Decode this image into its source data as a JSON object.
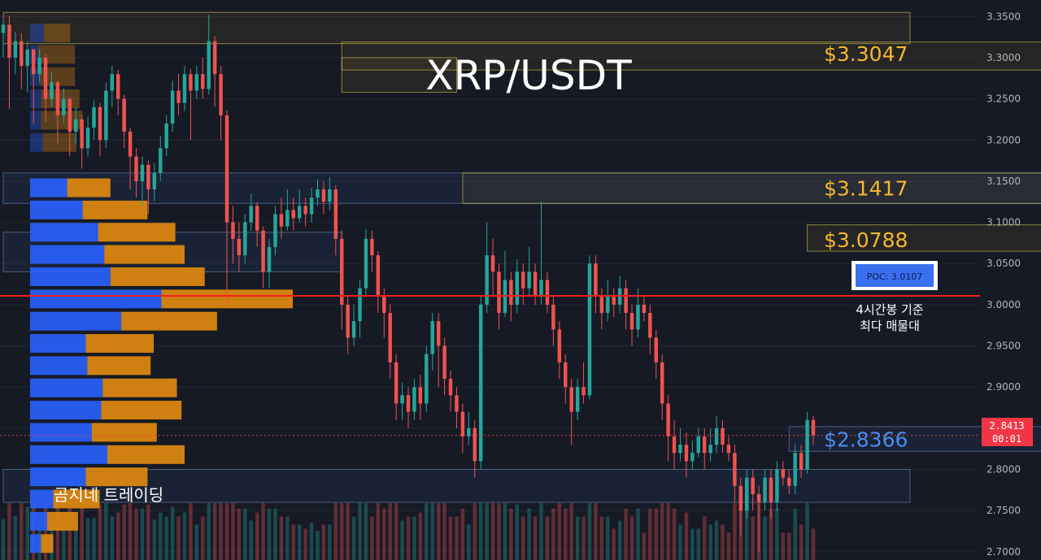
{
  "title": "XRP/USDT",
  "watermark": "곰지네 트레이딩",
  "poc_label": "POC: 3.0107",
  "poc_note": [
    "4시간봉 기준",
    "최다 매물대"
  ],
  "price_tag": {
    "price": "2.8413",
    "timer": "00:01"
  },
  "colors": {
    "up": "#26a69a",
    "down": "#ef5350",
    "poc": "#f21f1f",
    "level": "#f5b82e",
    "level_blue": "#4c8cf2",
    "vp_blue": "#2962ff",
    "vp_orange": "#d9860f"
  },
  "chart_data": {
    "type": "candlestick",
    "ylim": [
      2.69,
      3.37
    ],
    "y_ticks": [
      "3.3500",
      "3.3000",
      "3.2500",
      "3.2000",
      "3.1500",
      "3.1000",
      "3.0500",
      "3.0000",
      "2.9500",
      "2.9000",
      "2.8500",
      "2.8000",
      "2.7500",
      "2.7000"
    ],
    "y_tick_values": [
      3.35,
      3.3,
      3.25,
      3.2,
      3.15,
      3.1,
      3.05,
      3.0,
      2.95,
      2.9,
      2.85,
      2.8,
      2.75,
      2.7
    ],
    "current_price": 2.8413,
    "poc": 3.0107,
    "levels": [
      {
        "label": "$3.3047",
        "value": 3.3047,
        "color": "level"
      },
      {
        "label": "$3.1417",
        "value": 3.1417,
        "color": "level"
      },
      {
        "label": "$3.0788",
        "value": 3.0788,
        "color": "level"
      },
      {
        "label": "$2.8366",
        "value": 2.8366,
        "color": "level_blue"
      }
    ],
    "zones": [
      {
        "x": [
          0,
          150
        ],
        "y": [
          3.317,
          3.355
        ],
        "color": "yellow"
      },
      {
        "x": [
          56,
          234
        ],
        "y": [
          3.285,
          3.319
        ],
        "color": "yellow"
      },
      {
        "x": [
          56,
          75
        ],
        "y": [
          3.258,
          3.3
        ],
        "color": "yellow"
      },
      {
        "x": [
          0,
          234
        ],
        "y": [
          3.123,
          3.16
        ],
        "color": "blue"
      },
      {
        "x": [
          76,
          234
        ],
        "y": [
          3.123,
          3.16
        ],
        "color": "yellow"
      },
      {
        "x": [
          0,
          56
        ],
        "y": [
          3.04,
          3.088
        ],
        "color": "blue"
      },
      {
        "x": [
          133,
          234
        ],
        "y": [
          3.065,
          3.097
        ],
        "color": "yellow"
      },
      {
        "x": [
          130,
          234
        ],
        "y": [
          2.822,
          2.852
        ],
        "color": "blue"
      },
      {
        "x": [
          195,
          234
        ],
        "y": [
          2.822,
          2.852
        ],
        "color": "yellow"
      },
      {
        "x": [
          0,
          150
        ],
        "y": [
          2.76,
          2.8
        ],
        "color": "blue"
      }
    ],
    "volume_profile": {
      "bins": [
        3.33,
        3.304,
        3.277,
        3.25,
        3.224,
        3.197,
        3.142,
        3.115,
        3.088,
        3.061,
        3.034,
        3.007,
        2.98,
        2.953,
        2.926,
        2.899,
        2.872,
        2.845,
        2.818,
        2.791,
        2.764,
        2.737,
        2.71
      ],
      "buy": [
        9,
        5,
        6,
        7,
        7,
        8,
        24,
        34,
        44,
        48,
        52,
        85,
        59,
        36,
        37,
        47,
        46,
        40,
        50,
        36,
        15,
        11,
        7
      ],
      "sell": [
        17,
        24,
        23,
        25,
        27,
        22,
        28,
        42,
        50,
        52,
        61,
        85,
        62,
        44,
        41,
        48,
        52,
        42,
        50,
        40,
        30,
        20,
        8
      ],
      "faded_bins": 6
    },
    "candles": [
      [
        3.33,
        3.34,
        3.347,
        3.3
      ],
      [
        3.34,
        3.3,
        3.351,
        3.238
      ],
      [
        3.3,
        3.32,
        3.331,
        3.28
      ],
      [
        3.32,
        3.29,
        3.33,
        3.262
      ],
      [
        3.29,
        3.31,
        3.32,
        3.258
      ],
      [
        3.31,
        3.28,
        3.311,
        3.22
      ],
      [
        3.28,
        3.3,
        3.31,
        3.27
      ],
      [
        3.3,
        3.25,
        3.304,
        3.222
      ],
      [
        3.25,
        3.27,
        3.282,
        3.24
      ],
      [
        3.27,
        3.23,
        3.272,
        3.195
      ],
      [
        3.23,
        3.25,
        3.263,
        3.22
      ],
      [
        3.25,
        3.21,
        3.252,
        3.18
      ],
      [
        3.21,
        3.225,
        3.24,
        3.195
      ],
      [
        3.225,
        3.19,
        3.23,
        3.165
      ],
      [
        3.19,
        3.215,
        3.228,
        3.18
      ],
      [
        3.215,
        3.24,
        3.248,
        3.2
      ],
      [
        3.24,
        3.2,
        3.245,
        3.18
      ],
      [
        3.2,
        3.26,
        3.27,
        3.19
      ],
      [
        3.26,
        3.28,
        3.29,
        3.24
      ],
      [
        3.28,
        3.25,
        3.285,
        3.23
      ],
      [
        3.25,
        3.21,
        3.255,
        3.19
      ],
      [
        3.21,
        3.18,
        3.215,
        3.14
      ],
      [
        3.18,
        3.15,
        3.19,
        3.13
      ],
      [
        3.15,
        3.17,
        3.18,
        3.12
      ],
      [
        3.17,
        3.14,
        3.175,
        3.11
      ],
      [
        3.14,
        3.16,
        3.172,
        3.126
      ],
      [
        3.16,
        3.19,
        3.205,
        3.15
      ],
      [
        3.19,
        3.22,
        3.23,
        3.18
      ],
      [
        3.22,
        3.26,
        3.272,
        3.21
      ],
      [
        3.26,
        3.245,
        3.28,
        3.23
      ],
      [
        3.245,
        3.28,
        3.29,
        3.235
      ],
      [
        3.28,
        3.26,
        3.286,
        3.2
      ],
      [
        3.26,
        3.28,
        3.29,
        3.25
      ],
      [
        3.28,
        3.262,
        3.3,
        3.25
      ],
      [
        3.262,
        3.32,
        3.352,
        3.255
      ],
      [
        3.32,
        3.28,
        3.326,
        3.24
      ],
      [
        3.28,
        3.23,
        3.29,
        3.2
      ],
      [
        3.23,
        3.1,
        3.236,
        3.0
      ],
      [
        3.1,
        3.08,
        3.12,
        3.05
      ],
      [
        3.08,
        3.06,
        3.1,
        3.04
      ],
      [
        3.06,
        3.1,
        3.11,
        3.05
      ],
      [
        3.1,
        3.12,
        3.135,
        3.09
      ],
      [
        3.12,
        3.09,
        3.125,
        3.07
      ],
      [
        3.09,
        3.04,
        3.095,
        3.02
      ],
      [
        3.04,
        3.07,
        3.08,
        3.02
      ],
      [
        3.07,
        3.11,
        3.12,
        3.06
      ],
      [
        3.11,
        3.095,
        3.13,
        3.08
      ],
      [
        3.095,
        3.115,
        3.14,
        3.09
      ],
      [
        3.115,
        3.105,
        3.13,
        3.09
      ],
      [
        3.105,
        3.12,
        3.14,
        3.1
      ],
      [
        3.12,
        3.11,
        3.13,
        3.095
      ],
      [
        3.11,
        3.13,
        3.142,
        3.1
      ],
      [
        3.13,
        3.14,
        3.152,
        3.12
      ],
      [
        3.14,
        3.125,
        3.15,
        3.11
      ],
      [
        3.125,
        3.14,
        3.155,
        3.115
      ],
      [
        3.14,
        3.08,
        3.145,
        3.06
      ],
      [
        3.08,
        3.0,
        3.09,
        2.97
      ],
      [
        3.0,
        2.96,
        3.01,
        2.94
      ],
      [
        2.96,
        2.98,
        3.0,
        2.95
      ],
      [
        2.98,
        3.02,
        3.03,
        2.96
      ],
      [
        3.02,
        3.08,
        3.092,
        3.01
      ],
      [
        3.08,
        3.06,
        3.09,
        3.04
      ],
      [
        3.06,
        3.01,
        3.065,
        2.99
      ],
      [
        3.01,
        2.99,
        3.02,
        2.96
      ],
      [
        2.99,
        2.93,
        3.0,
        2.91
      ],
      [
        2.93,
        2.88,
        2.94,
        2.86
      ],
      [
        2.88,
        2.89,
        2.905,
        2.86
      ],
      [
        2.89,
        2.87,
        2.9,
        2.85
      ],
      [
        2.87,
        2.9,
        2.91,
        2.86
      ],
      [
        2.9,
        2.88,
        2.915,
        2.86
      ],
      [
        2.88,
        2.94,
        2.95,
        2.87
      ],
      [
        2.94,
        2.98,
        2.99,
        2.92
      ],
      [
        2.98,
        2.95,
        2.99,
        2.9
      ],
      [
        2.95,
        2.91,
        2.96,
        2.89
      ],
      [
        2.91,
        2.89,
        2.92,
        2.87
      ],
      [
        2.89,
        2.87,
        2.9,
        2.85
      ],
      [
        2.87,
        2.84,
        2.88,
        2.82
      ],
      [
        2.84,
        2.85,
        2.87,
        2.83
      ],
      [
        2.85,
        2.81,
        2.86,
        2.79
      ],
      [
        2.81,
        3.0,
        3.01,
        2.8
      ],
      [
        3.0,
        3.06,
        3.1,
        2.99
      ],
      [
        3.06,
        3.04,
        3.08,
        3.01
      ],
      [
        3.04,
        2.99,
        3.05,
        2.97
      ],
      [
        2.99,
        3.03,
        3.065,
        2.985
      ],
      [
        3.03,
        3.0,
        3.04,
        2.98
      ],
      [
        3.0,
        3.04,
        3.055,
        2.99
      ],
      [
        3.04,
        3.02,
        3.05,
        3.0
      ],
      [
        3.02,
        3.04,
        3.07,
        3.01
      ],
      [
        3.04,
        3.01,
        3.05,
        3.0
      ],
      [
        3.01,
        3.03,
        3.125,
        3.0
      ],
      [
        3.03,
        3.0,
        3.04,
        2.99
      ],
      [
        3.0,
        2.97,
        3.01,
        2.95
      ],
      [
        2.97,
        2.93,
        2.98,
        2.91
      ],
      [
        2.93,
        2.9,
        2.94,
        2.88
      ],
      [
        2.9,
        2.87,
        2.91,
        2.83
      ],
      [
        2.87,
        2.9,
        2.91,
        2.86
      ],
      [
        2.9,
        2.89,
        2.93,
        2.88
      ],
      [
        2.89,
        3.05,
        3.06,
        2.885
      ],
      [
        3.05,
        3.01,
        3.06,
        2.99
      ],
      [
        3.01,
        2.99,
        3.02,
        2.97
      ],
      [
        2.99,
        3.01,
        3.03,
        2.98
      ],
      [
        3.01,
        3.0,
        3.02,
        2.985
      ],
      [
        3.0,
        3.02,
        3.035,
        2.99
      ],
      [
        3.02,
        2.99,
        3.03,
        2.97
      ],
      [
        2.99,
        2.97,
        3.0,
        2.95
      ],
      [
        2.97,
        3.0,
        3.02,
        2.96
      ],
      [
        3.0,
        2.99,
        3.01,
        2.98
      ],
      [
        2.99,
        2.96,
        3.0,
        2.94
      ],
      [
        2.96,
        2.93,
        2.97,
        2.91
      ],
      [
        2.93,
        2.88,
        2.94,
        2.86
      ],
      [
        2.88,
        2.84,
        2.89,
        2.81
      ],
      [
        2.84,
        2.82,
        2.86,
        2.8
      ],
      [
        2.82,
        2.83,
        2.85,
        2.81
      ],
      [
        2.83,
        2.81,
        2.845,
        2.79
      ],
      [
        2.81,
        2.82,
        2.835,
        2.8
      ],
      [
        2.82,
        2.84,
        2.85,
        2.815
      ],
      [
        2.84,
        2.82,
        2.85,
        2.8
      ],
      [
        2.82,
        2.83,
        2.85,
        2.81
      ],
      [
        2.83,
        2.85,
        2.865,
        2.82
      ],
      [
        2.85,
        2.83,
        2.86,
        2.82
      ],
      [
        2.83,
        2.82,
        2.84,
        2.81
      ],
      [
        2.82,
        2.78,
        2.83,
        2.76
      ],
      [
        2.78,
        2.75,
        2.79,
        2.72
      ],
      [
        2.75,
        2.79,
        2.8,
        2.74
      ],
      [
        2.79,
        2.77,
        2.8,
        2.75
      ],
      [
        2.77,
        2.76,
        2.78,
        2.7
      ],
      [
        2.76,
        2.79,
        2.8,
        2.75
      ],
      [
        2.79,
        2.76,
        2.8,
        2.74
      ],
      [
        2.76,
        2.8,
        2.81,
        2.75
      ],
      [
        2.8,
        2.79,
        2.81,
        2.78
      ],
      [
        2.79,
        2.78,
        2.8,
        2.77
      ],
      [
        2.78,
        2.82,
        2.83,
        2.77
      ],
      [
        2.82,
        2.8,
        2.83,
        2.79
      ],
      [
        2.8,
        2.86,
        2.87,
        2.795
      ],
      [
        2.86,
        2.8413,
        2.865,
        2.83
      ]
    ]
  }
}
